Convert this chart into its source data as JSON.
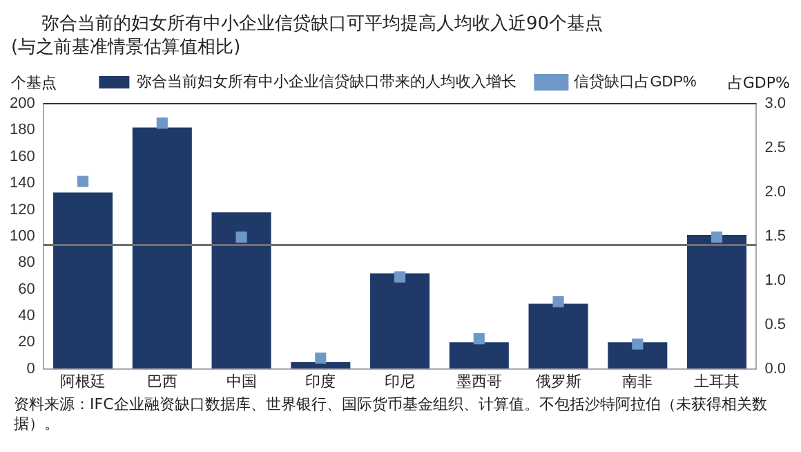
{
  "chart_data": {
    "type": "bar",
    "title": "弥合当前的妇女所有中小企业信贷缺口可平均提高人均收入近90个基点",
    "subtitle": "(与之前基准情景估算值相比)",
    "ylabel": "个基点",
    "y2label": "占GDP%",
    "categories": [
      "阿根廷",
      "巴西",
      "中国",
      "印度",
      "印尼",
      "墨西哥",
      "俄罗斯",
      "南非",
      "土耳其"
    ],
    "series": [
      {
        "name": "弥合当前妇女所有中小企业信贷缺口带来的人均收入增长",
        "color": "#1f3a68",
        "values": [
          133,
          182,
          118,
          5,
          72,
          20,
          49,
          20,
          101
        ]
      },
      {
        "name": "信贷缺口占GDP%",
        "type": "scatter",
        "axis": "y2",
        "marker": "square",
        "color": "#6f98c8",
        "values": [
          2.12,
          2.78,
          1.49,
          0.12,
          1.04,
          0.34,
          0.76,
          0.28,
          1.49
        ]
      }
    ],
    "ylim": [
      0,
      200
    ],
    "yticks": [
      0,
      20,
      40,
      60,
      80,
      100,
      120,
      140,
      160,
      180,
      200
    ],
    "y2lim": [
      0,
      3.0
    ],
    "y2ticks": [
      {
        "value": 0,
        "label": "0.0"
      },
      {
        "value": 0.5,
        "label": "0.5"
      },
      {
        "value": 1,
        "label": "1.0"
      },
      {
        "value": 1.5,
        "label": "1.5"
      },
      {
        "value": 2,
        "label": "2.0"
      },
      {
        "value": 2.5,
        "label": "2.5"
      },
      {
        "value": 3,
        "label": "3.0"
      }
    ],
    "ref_lines": [
      {
        "axis": "y2",
        "value": 1.4,
        "color": "#707070"
      }
    ],
    "grid": false,
    "legend": "top",
    "annotations": [
      "资料来源：IFC企业融资缺口数据库、世界银行、国际货币基金组织、计算值。不包括沙特阿拉伯（未获得相关数据）。"
    ]
  }
}
